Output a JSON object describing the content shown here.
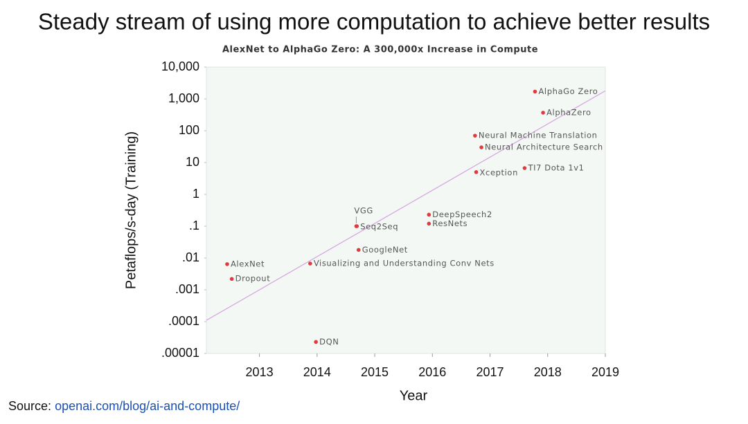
{
  "header": {
    "title": "Steady stream of using more computation to achieve better results"
  },
  "footer": {
    "prefix": "Source:",
    "link": "openai.com/blog/ai-and-compute/"
  },
  "chart_data": {
    "type": "scatter",
    "title": "AlexNet to AlphaGo Zero: A 300,000x Increase in Compute",
    "x_label": "Year",
    "y_label": "Petaflops/s-day (Training)",
    "log_y": true,
    "xlim": [
      2012.08,
      2019
    ],
    "xticks": [
      2013,
      2014,
      2015,
      2016,
      2017,
      2018,
      2019
    ],
    "ylim": [
      1e-05,
      10000
    ],
    "yticks": [
      {
        "value": 10000,
        "label": "10,000"
      },
      {
        "value": 1000,
        "label": "1,000"
      },
      100,
      10,
      1,
      {
        "value": 0.1,
        "label": ".1"
      },
      {
        "value": 0.01,
        "label": ".01"
      },
      {
        "value": 0.001,
        "label": ".001"
      },
      {
        "value": 0.0001,
        "label": ".0001"
      },
      {
        "value": 1e-05,
        "label": ".00001"
      }
    ],
    "color": "#e0393e",
    "labels": [
      "AlexNet",
      "Dropout",
      "DQN",
      "Visualizing and Understanding Conv Nets",
      "GoogleNet",
      "VGG",
      "Seq2Seq",
      "DeepSpeech2",
      "ResNets",
      "Neural Machine Translation",
      "Neural Architecture Search",
      "Xception",
      "TI7 Dota 1v1",
      "AlphaGo Zero",
      "AlphaZero"
    ],
    "x": [
      2012.44,
      2012.52,
      2013.98,
      2013.88,
      2014.72,
      2014.68,
      2014.69,
      2015.94,
      2015.94,
      2016.74,
      2016.85,
      2016.76,
      2017.6,
      2017.78,
      2017.92
    ],
    "values": [
      0.0064,
      0.0022,
      2.3e-05,
      0.0067,
      0.018,
      0.1,
      0.1,
      0.23,
      0.12,
      70,
      30,
      5,
      6.7,
      1700,
      370
    ],
    "trend": {
      "color": "#d6a8e0",
      "x": [
        2012.08,
        2019
      ],
      "values": [
        0.00011,
        1800
      ]
    }
  }
}
